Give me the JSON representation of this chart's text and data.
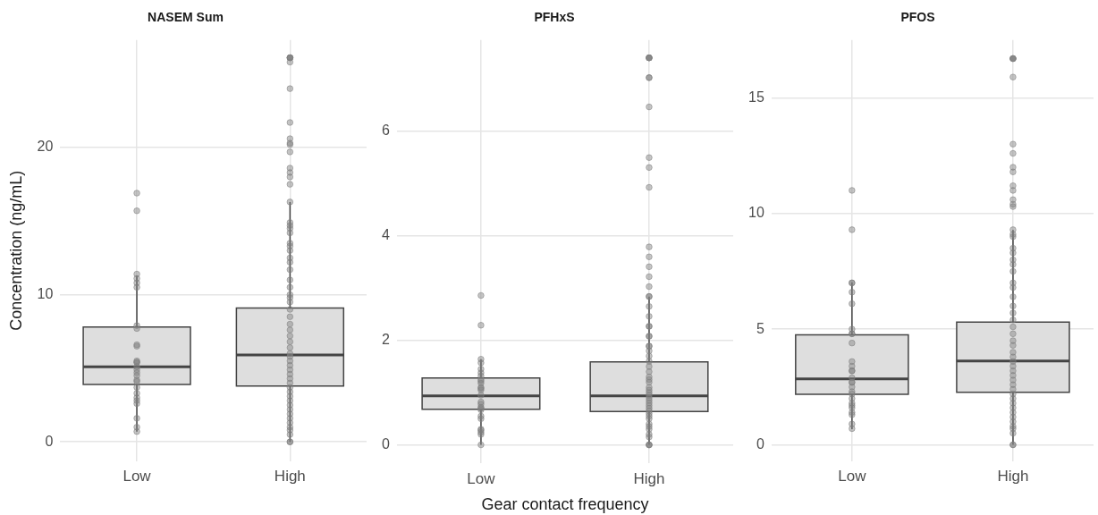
{
  "chart_data": [
    {
      "type": "box",
      "title": "NASEM Sum",
      "ylabel": "Concentration (ng/mL)",
      "categories": [
        "Low",
        "High"
      ],
      "ylim": [
        -1.3,
        27.3
      ],
      "yticks": [
        0,
        10,
        20
      ],
      "grid": true,
      "marker": "circle",
      "series": [
        {
          "type": "box",
          "color": "#dedede",
          "boxes": [
            {
              "low": 0.7,
              "q1": 3.9,
              "median": 5.1,
              "q3": 7.8,
              "high": 11.3
            },
            {
              "low": 0,
              "q1": 3.8,
              "median": 5.9,
              "q3": 9.1,
              "high": 16.3
            }
          ]
        },
        {
          "type": "scatter",
          "color": "#7f7f7f",
          "x": [
            "Low",
            "Low",
            "Low",
            "Low",
            "Low",
            "Low",
            "Low",
            "Low",
            "Low",
            "Low",
            "Low",
            "Low",
            "Low",
            "Low",
            "Low",
            "Low",
            "Low",
            "Low",
            "Low",
            "Low",
            "Low",
            "Low",
            "Low",
            "Low",
            "Low",
            "Low",
            "Low",
            "High",
            "High",
            "High",
            "High",
            "High",
            "High",
            "High",
            "High",
            "High",
            "High",
            "High",
            "High",
            "High",
            "High",
            "High",
            "High",
            "High",
            "High",
            "High",
            "High",
            "High",
            "High",
            "High",
            "High",
            "High",
            "High",
            "High",
            "High",
            "High",
            "High",
            "High",
            "High",
            "High",
            "High",
            "High",
            "High",
            "High",
            "High",
            "High",
            "High",
            "High",
            "High",
            "High",
            "High",
            "High",
            "High",
            "High",
            "High",
            "High",
            "High",
            "High",
            "High",
            "High",
            "High",
            "High",
            "High",
            "High",
            "High",
            "High",
            "High"
          ],
          "values": [
            16.9,
            15.7,
            11.4,
            11.1,
            10.8,
            10.5,
            7.9,
            7.7,
            6.6,
            6.5,
            5.5,
            5.4,
            5.4,
            5.1,
            4.9,
            4.7,
            4.5,
            4.2,
            4.1,
            3.7,
            3.3,
            3.0,
            2.8,
            2.6,
            1.6,
            1.0,
            0.7,
            26.1,
            26.1,
            26.1,
            26.1,
            25.8,
            24.0,
            21.7,
            20.6,
            20.3,
            20.2,
            19.7,
            18.6,
            18.3,
            18.0,
            17.5,
            16.3,
            14.9,
            14.7,
            14.5,
            14.2,
            13.5,
            13.3,
            13.0,
            12.5,
            12.2,
            11.7,
            11.0,
            10.5,
            10.0,
            9.8,
            9.5,
            9.0,
            8.5,
            8.0,
            7.6,
            7.2,
            6.8,
            6.4,
            6.0,
            5.8,
            5.5,
            5.2,
            4.9,
            4.6,
            4.3,
            4.0,
            3.7,
            3.4,
            3.1,
            2.8,
            2.5,
            2.2,
            1.9,
            1.6,
            1.3,
            1.0,
            0.8,
            0.5,
            0.0,
            0.0
          ]
        }
      ]
    },
    {
      "type": "box",
      "title": "PFHxS",
      "xlabel": "Gear contact frequency",
      "categories": [
        "Low",
        "High"
      ],
      "ylim": [
        -0.35,
        7.75
      ],
      "yticks": [
        0,
        2,
        4,
        6
      ],
      "grid": true,
      "marker": "circle",
      "series": [
        {
          "type": "box",
          "color": "#dedede",
          "boxes": [
            {
              "low": 0,
              "q1": 0.68,
              "median": 0.94,
              "q3": 1.28,
              "high": 1.64
            },
            {
              "low": 0,
              "q1": 0.64,
              "median": 0.94,
              "q3": 1.59,
              "high": 2.84
            }
          ]
        },
        {
          "type": "scatter",
          "color": "#7f7f7f",
          "x": [
            "Low",
            "Low",
            "Low",
            "Low",
            "Low",
            "Low",
            "Low",
            "Low",
            "Low",
            "Low",
            "Low",
            "Low",
            "Low",
            "Low",
            "Low",
            "Low",
            "Low",
            "Low",
            "Low",
            "Low",
            "Low",
            "Low",
            "Low",
            "Low",
            "Low",
            "Low",
            "High",
            "High",
            "High",
            "High",
            "High",
            "High",
            "High",
            "High",
            "High",
            "High",
            "High",
            "High",
            "High",
            "High",
            "High",
            "High",
            "High",
            "High",
            "High",
            "High",
            "High",
            "High",
            "High",
            "High",
            "High",
            "High",
            "High",
            "High",
            "High",
            "High",
            "High",
            "High",
            "High",
            "High",
            "High",
            "High",
            "High",
            "High",
            "High",
            "High",
            "High",
            "High",
            "High",
            "High",
            "High",
            "High",
            "High",
            "High",
            "High",
            "High",
            "High",
            "High",
            "High",
            "High"
          ],
          "values": [
            2.86,
            2.29,
            1.64,
            1.57,
            1.45,
            1.38,
            1.32,
            1.25,
            1.22,
            1.18,
            1.1,
            1.08,
            1.05,
            0.95,
            0.82,
            0.78,
            0.72,
            0.7,
            0.67,
            0.55,
            0.5,
            0.3,
            0.28,
            0.24,
            0.2,
            0.0,
            7.41,
            7.41,
            7.41,
            7.41,
            7.03,
            7.03,
            6.47,
            5.5,
            5.31,
            4.93,
            3.79,
            3.6,
            3.41,
            3.22,
            3.03,
            2.84,
            2.84,
            2.65,
            2.46,
            2.27,
            2.27,
            2.08,
            2.08,
            1.89,
            1.89,
            1.8,
            1.7,
            1.6,
            1.5,
            1.4,
            1.3,
            1.25,
            1.2,
            1.1,
            1.05,
            1.0,
            0.95,
            0.9,
            0.85,
            0.8,
            0.75,
            0.7,
            0.65,
            0.6,
            0.55,
            0.5,
            0.4,
            0.35,
            0.3,
            0.2,
            0.15,
            0.0,
            0.0,
            0.0
          ]
        }
      ]
    },
    {
      "type": "box",
      "title": "PFOS",
      "categories": [
        "Low",
        "High"
      ],
      "ylim": [
        -0.7,
        17.5
      ],
      "yticks": [
        0,
        5,
        10,
        15
      ],
      "grid": true,
      "marker": "circle",
      "series": [
        {
          "type": "box",
          "color": "#dedede",
          "boxes": [
            {
              "low": 0.68,
              "q1": 2.18,
              "median": 2.85,
              "q3": 4.75,
              "high": 7.03
            },
            {
              "low": 0,
              "q1": 2.27,
              "median": 3.62,
              "q3": 5.31,
              "high": 9.29
            }
          ]
        },
        {
          "type": "scatter",
          "color": "#7f7f7f",
          "x": [
            "Low",
            "Low",
            "Low",
            "Low",
            "Low",
            "Low",
            "Low",
            "Low",
            "Low",
            "Low",
            "Low",
            "Low",
            "Low",
            "Low",
            "Low",
            "Low",
            "Low",
            "Low",
            "Low",
            "Low",
            "Low",
            "Low",
            "Low",
            "Low",
            "Low",
            "Low",
            "Low",
            "Low",
            "High",
            "High",
            "High",
            "High",
            "High",
            "High",
            "High",
            "High",
            "High",
            "High",
            "High",
            "High",
            "High",
            "High",
            "High",
            "High",
            "High",
            "High",
            "High",
            "High",
            "High",
            "High",
            "High",
            "High",
            "High",
            "High",
            "High",
            "High",
            "High",
            "High",
            "High",
            "High",
            "High",
            "High",
            "High",
            "High",
            "High",
            "High",
            "High",
            "High",
            "High",
            "High",
            "High",
            "High",
            "High",
            "High",
            "High",
            "High",
            "High",
            "High",
            "High",
            "High",
            "High"
          ],
          "values": [
            11.0,
            9.3,
            7.0,
            7.0,
            6.6,
            6.1,
            5.0,
            4.8,
            4.8,
            4.4,
            3.6,
            3.4,
            3.2,
            3.2,
            2.9,
            2.7,
            2.7,
            2.5,
            2.3,
            2.2,
            2.0,
            1.8,
            1.7,
            1.6,
            1.4,
            1.3,
            0.9,
            0.7,
            16.7,
            16.7,
            16.7,
            16.7,
            15.9,
            13.0,
            12.6,
            12.0,
            11.8,
            11.2,
            11.0,
            10.6,
            10.4,
            10.3,
            9.3,
            9.1,
            9.0,
            8.5,
            8.3,
            8.0,
            7.8,
            7.5,
            7.0,
            6.8,
            6.4,
            6.0,
            5.7,
            5.4,
            5.1,
            4.8,
            4.5,
            4.3,
            4.0,
            3.8,
            3.6,
            3.4,
            3.2,
            3.0,
            2.8,
            2.6,
            2.4,
            2.2,
            2.0,
            1.8,
            1.6,
            1.4,
            1.2,
            1.0,
            0.8,
            0.7,
            0.5,
            0.0,
            0.0
          ]
        }
      ]
    }
  ]
}
